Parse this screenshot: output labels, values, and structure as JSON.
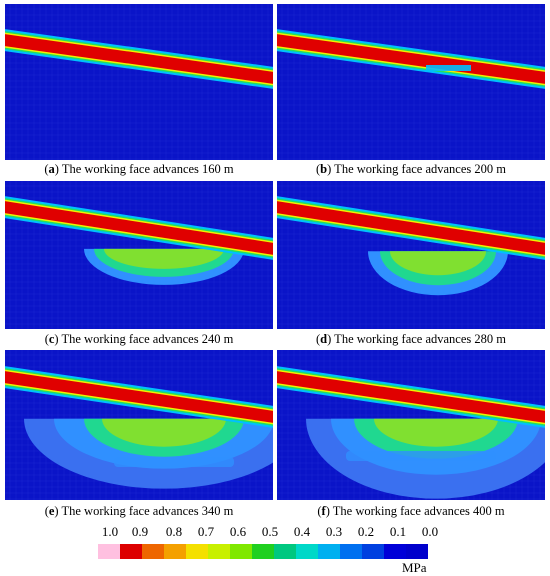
{
  "panels": [
    {
      "letter": "a",
      "text": " The working face advances 160 m"
    },
    {
      "letter": "b",
      "text": " The working face advances 200 m"
    },
    {
      "letter": "c",
      "text": " The working face advances 240 m"
    },
    {
      "letter": "d",
      "text": " The working face advances 280 m"
    },
    {
      "letter": "e",
      "text": " The working face advances 340 m"
    },
    {
      "letter": "f",
      "text": " The working face advances 400 m"
    }
  ],
  "legend": {
    "ticks": [
      "1.0",
      "0.9",
      "0.8",
      "0.7",
      "0.6",
      "0.5",
      "0.4",
      "0.3",
      "0.2",
      "0.1",
      "0.0"
    ],
    "unit": "MPa",
    "colors": [
      "#ffc0e0",
      "#dd0000",
      "#ee6600",
      "#f4a000",
      "#f4e000",
      "#c8f000",
      "#80e800",
      "#20d020",
      "#00c880",
      "#00d8c8",
      "#00b0f0",
      "#0070f0",
      "#0040e0",
      "#0000d8",
      "#0000cc"
    ]
  },
  "colors": {
    "background": "#0a14c8",
    "band_core": "#e00000",
    "band_edge_1": "#f0f000",
    "band_edge_2": "#20e060",
    "band_edge_3": "#00c0ff",
    "zone_inner": "#80e030",
    "zone_mid": "#20d890",
    "zone_outer": "#3090ff",
    "zone_far": "#3a70f0"
  }
}
